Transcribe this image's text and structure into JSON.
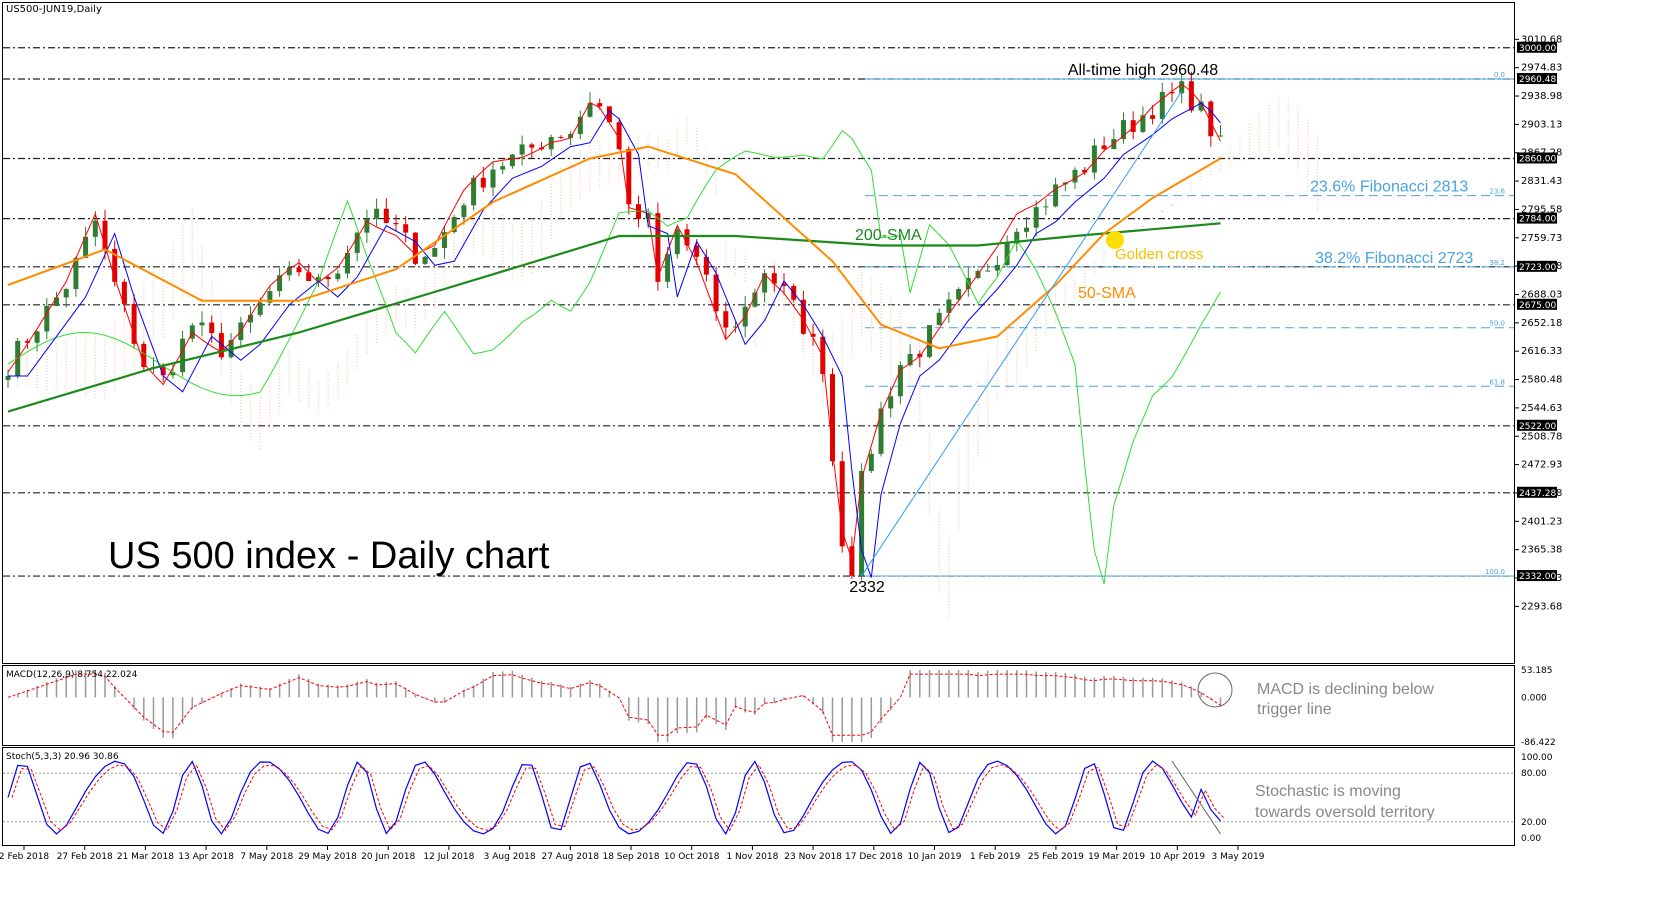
{
  "window": {
    "instrument_label": "US500-JUN19,Daily",
    "chart_title": "US 500 index - Daily chart"
  },
  "colors": {
    "candle_up": "#2e7d32",
    "candle_down": "#e00000",
    "sma200": "#1b8a1b",
    "sma50": "#ff8c00",
    "tenkan": "#ff0000",
    "kijun": "#0000ff",
    "chikou": "#33dd33",
    "cloud_up": "#f4c8a8",
    "cloud_down": "#ff66cc",
    "fib": "#4aa3df",
    "trendline": "#3399ff",
    "macd": "#999999",
    "signal": "#ff0000",
    "stoch_main": "#0000ff",
    "stoch_signal": "#ff0000",
    "annotation_orange": "#ff8c00",
    "annotation_golden": "#f5c000",
    "annotation_gray": "#888888"
  },
  "chart_data": [
    {
      "type": "candlestick",
      "title": "US 500 index - Daily chart",
      "ylim": [
        2260,
        3025
      ],
      "x_tick_labels": [
        "2 Feb 2018",
        "27 Feb 2018",
        "21 Mar 2018",
        "13 Apr 2018",
        "7 May 2018",
        "29 May 2018",
        "20 Jun 2018",
        "12 Jul 2018",
        "3 Aug 2018",
        "27 Aug 2018",
        "18 Sep 2018",
        "10 Oct 2018",
        "1 Nov 2018",
        "23 Nov 2018",
        "17 Dec 2018",
        "10 Jan 2019",
        "1 Feb 2019",
        "25 Feb 2019",
        "19 Mar 2019",
        "10 Apr 2019",
        "3 May 2019"
      ],
      "y_tick_labels": [
        "3010.68",
        "2974.83",
        "2938.98",
        "2903.13",
        "2867.28",
        "2831.43",
        "2795.58",
        "2759.73",
        "2723.88",
        "2688.03",
        "2652.18",
        "2616.33",
        "2580.48",
        "2544.63",
        "2508.78",
        "2472.93",
        "2437.08",
        "2401.23",
        "2365.38",
        "2329.53",
        "2293.68"
      ],
      "price_tags": [
        {
          "label": "3000.00",
          "value": 3000.0
        },
        {
          "label": "2960.48",
          "value": 2960.48
        },
        {
          "label": "2860.00",
          "value": 2860.0
        },
        {
          "label": "2784.00",
          "value": 2784.0
        },
        {
          "label": "2723.00",
          "value": 2723.0
        },
        {
          "label": "2675.00",
          "value": 2675.0
        },
        {
          "label": "2522.00",
          "value": 2522.0
        },
        {
          "label": "2437.28",
          "value": 2437.28
        },
        {
          "label": "2332.00",
          "value": 2332.0
        }
      ],
      "horizontal_levels": [
        3000.0,
        2960.48,
        2860.0,
        2784.0,
        2723.0,
        2675.0,
        2522.0,
        2437.28,
        2332.0
      ],
      "fibonacci_levels": [
        {
          "ratio": "0.0",
          "value": 2960.48
        },
        {
          "ratio": "23.6",
          "value": 2813
        },
        {
          "ratio": "38.2",
          "value": 2723
        },
        {
          "ratio": "50.0",
          "value": 2646
        },
        {
          "ratio": "61.8",
          "value": 2572
        },
        {
          "ratio": "100.0",
          "value": 2332
        }
      ],
      "close_path": [
        [
          0,
          2600
        ],
        [
          6,
          2700
        ],
        [
          9,
          2780
        ],
        [
          11,
          2700
        ],
        [
          14,
          2600
        ],
        [
          16,
          2580
        ],
        [
          19,
          2650
        ],
        [
          22,
          2620
        ],
        [
          24,
          2640
        ],
        [
          27,
          2690
        ],
        [
          30,
          2720
        ],
        [
          32,
          2700
        ],
        [
          34,
          2725
        ],
        [
          37,
          2790
        ],
        [
          40,
          2770
        ],
        [
          42,
          2740
        ],
        [
          44,
          2745
        ],
        [
          47,
          2810
        ],
        [
          50,
          2850
        ],
        [
          53,
          2865
        ],
        [
          56,
          2890
        ],
        [
          58,
          2895
        ],
        [
          60,
          2935
        ],
        [
          61,
          2925
        ],
        [
          63,
          2880
        ],
        [
          64,
          2790
        ],
        [
          66,
          2780
        ],
        [
          67,
          2700
        ],
        [
          69,
          2770
        ],
        [
          71,
          2730
        ],
        [
          74,
          2640
        ],
        [
          76,
          2670
        ],
        [
          78,
          2720
        ],
        [
          80,
          2690
        ],
        [
          82,
          2650
        ],
        [
          84,
          2600
        ],
        [
          85,
          2480
        ],
        [
          86,
          2380
        ],
        [
          87,
          2345
        ],
        [
          88,
          2450
        ],
        [
          90,
          2540
        ],
        [
          92,
          2600
        ],
        [
          94,
          2620
        ],
        [
          97,
          2670
        ],
        [
          100,
          2710
        ],
        [
          102,
          2740
        ],
        [
          104,
          2780
        ],
        [
          106,
          2795
        ],
        [
          108,
          2820
        ],
        [
          111,
          2850
        ],
        [
          113,
          2880
        ],
        [
          116,
          2905
        ],
        [
          118,
          2925
        ],
        [
          121,
          2945
        ],
        [
          122,
          2935
        ],
        [
          123,
          2920
        ],
        [
          125,
          2875
        ]
      ],
      "series": [
        {
          "name": "200-SMA",
          "values": [
            [
              0,
              2540
            ],
            [
              15,
              2595
            ],
            [
              30,
              2640
            ],
            [
              45,
              2695
            ],
            [
              63,
              2762
            ],
            [
              75,
              2762
            ],
            [
              90,
              2750
            ],
            [
              100,
              2750
            ],
            [
              110,
              2762
            ],
            [
              125,
              2778
            ]
          ]
        },
        {
          "name": "50-SMA",
          "values": [
            [
              0,
              2700
            ],
            [
              10,
              2745
            ],
            [
              20,
              2680
            ],
            [
              30,
              2680
            ],
            [
              40,
              2720
            ],
            [
              50,
              2805
            ],
            [
              60,
              2860
            ],
            [
              66,
              2875
            ],
            [
              75,
              2840
            ],
            [
              85,
              2730
            ],
            [
              90,
              2650
            ],
            [
              96,
              2620
            ],
            [
              102,
              2635
            ],
            [
              108,
              2700
            ],
            [
              113,
              2765
            ],
            [
              118,
              2810
            ],
            [
              125,
              2860
            ]
          ]
        }
      ],
      "stats": [
        {
          "label": "All-time high 2960.48",
          "value": 2960.48
        },
        {
          "label": "2332",
          "value": 2332
        }
      ],
      "annotations": [
        {
          "label": "23.6% Fibonacci 2813",
          "value": 2813
        },
        {
          "label": "38.2% Fibonacci 2723",
          "value": 2723
        },
        {
          "label": "200-SMA"
        },
        {
          "label": "Golden cross"
        },
        {
          "label": "50-SMA"
        }
      ]
    },
    {
      "type": "histogram",
      "name": "MACD(12,26,9) 8.754 22.024",
      "ylim": [
        -86.422,
        53.185
      ],
      "y_tick_labels": [
        "53.185",
        "0.000",
        "-86.422"
      ],
      "annotation": "MACD is declining below trigger line"
    },
    {
      "type": "line",
      "name": "Stoch(5,3,3) 20.96 30.86",
      "ylim": [
        0,
        100
      ],
      "y_tick_labels": [
        "100.00",
        "80.00",
        "20.00",
        "0.00"
      ],
      "annotation": "Stochastic is moving towards oversold territory"
    }
  ]
}
